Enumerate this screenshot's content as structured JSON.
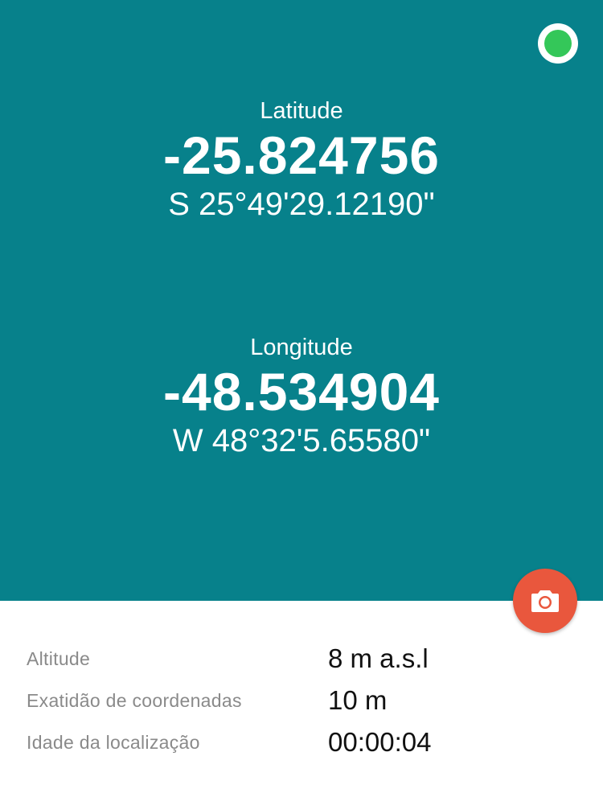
{
  "status": {
    "indicator_color": "#34c759",
    "indicator_icon": "status-dot-icon"
  },
  "latitude": {
    "label": "Latitude",
    "decimal": "-25.824756",
    "dms": "S 25°49'29.12190\""
  },
  "longitude": {
    "label": "Longitude",
    "decimal": "-48.534904",
    "dms": "W 48°32'5.65580\""
  },
  "camera_button": {
    "icon": "camera-icon",
    "color": "#e9573d"
  },
  "details": [
    {
      "label": "Altitude",
      "value": "8 m a.s.l"
    },
    {
      "label": "Exatidão de coordenadas",
      "value": "10 m"
    },
    {
      "label": "Idade da localização",
      "value": "00:00:04"
    }
  ],
  "theme": {
    "primary": "#07818b",
    "background": "#ffffff"
  }
}
